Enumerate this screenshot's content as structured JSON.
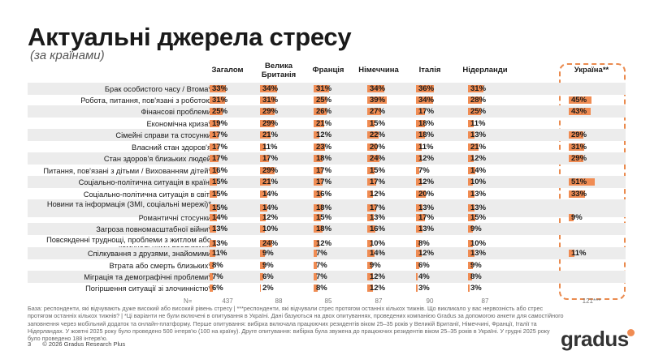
{
  "title": "Актуальні джерела стресу",
  "subtitle": "(за країнами)",
  "columns": [
    "Загалом",
    "Велика Британія",
    "Франція",
    "Німеччина",
    "Італія",
    "Нідерланди",
    "Україна**"
  ],
  "n_label": "N=",
  "n_values": [
    "437",
    "88",
    "85",
    "87",
    "90",
    "87",
    "121***"
  ],
  "colors": {
    "bar": "#f08c53",
    "frame": "#ea8a4e",
    "shade": "#ececec"
  },
  "chart_data": {
    "type": "table",
    "title": "Актуальні джерела стресу",
    "value_unit": "%",
    "columns": [
      "Загалом",
      "Велика Британія",
      "Франція",
      "Німеччина",
      "Італія",
      "Нідерланди",
      "Україна**"
    ],
    "rows": [
      {
        "label": "Брак особистого часу / Втома*",
        "values": [
          33,
          34,
          31,
          34,
          36,
          31,
          null
        ]
      },
      {
        "label": "Робота, питання, пов'язані з роботою",
        "values": [
          31,
          31,
          25,
          39,
          34,
          28,
          45
        ]
      },
      {
        "label": "Фінансові проблеми",
        "values": [
          25,
          29,
          26,
          27,
          17,
          25,
          43
        ]
      },
      {
        "label": "Економічна криза*",
        "values": [
          19,
          29,
          21,
          15,
          18,
          11,
          null
        ]
      },
      {
        "label": "Сімейні справи та стосунки",
        "values": [
          17,
          21,
          12,
          22,
          18,
          13,
          29
        ]
      },
      {
        "label": "Власний стан здоров'я",
        "values": [
          17,
          11,
          23,
          20,
          11,
          21,
          31
        ]
      },
      {
        "label": "Стан здоров'я близьких людей",
        "values": [
          17,
          17,
          18,
          24,
          12,
          12,
          29
        ]
      },
      {
        "label": "Питання, пов'язані з дітьми / Вихованням дітей*",
        "values": [
          16,
          29,
          17,
          15,
          7,
          14,
          null
        ]
      },
      {
        "label": "Соціально-політична ситуація в країні",
        "values": [
          15,
          21,
          17,
          17,
          12,
          10,
          51
        ]
      },
      {
        "label": "Соціально-політична ситуація в світі",
        "values": [
          15,
          14,
          16,
          12,
          20,
          13,
          33
        ]
      },
      {
        "label": "Новини та інформація (ЗМІ, соціальні мережі)*",
        "values": [
          15,
          14,
          18,
          17,
          13,
          13,
          null
        ]
      },
      {
        "label": "Романтичні стосунки",
        "values": [
          14,
          12,
          15,
          13,
          17,
          15,
          9
        ]
      },
      {
        "label": "Загроза повномасштабної війни*",
        "values": [
          13,
          10,
          18,
          16,
          13,
          9,
          null
        ]
      },
      {
        "label": "Повсякденні труднощі, проблеми з житлом або комунальними послугами*",
        "values": [
          13,
          24,
          12,
          10,
          8,
          10,
          null
        ]
      },
      {
        "label": "Спілкування з друзями, знайомими",
        "values": [
          11,
          9,
          7,
          14,
          12,
          13,
          11
        ]
      },
      {
        "label": "Втрата або смерть близьких*",
        "values": [
          8,
          9,
          7,
          9,
          6,
          9,
          null
        ]
      },
      {
        "label": "Міграція та демографічні проблеми*",
        "values": [
          7,
          6,
          7,
          12,
          4,
          8,
          null
        ]
      },
      {
        "label": "Погіршення ситуації зі злочинністю*",
        "values": [
          6,
          2,
          8,
          12,
          3,
          3,
          null
        ]
      }
    ]
  },
  "footnote": "База: респонденти, які відчувають дуже високий або високий рівень стресу | ***респонденти, які відчували стрес протягом останніх кількох тижнів. Що викликало у вас нервозність або стрес протягом останніх кількох тижнів? | *Ці варіанти не були включені в опитування в Україні. Дані базуються на двох опитуваннях, проведених компанією Gradus за допомогою анкети для самостійного заповнення через мобільний додаток та онлайн-платформу. Перше опитування: вибірка включала працюючих резидентів віком 25–35 років у Великій Британії, Німеччині, Франції, Італії та Нідерландах. У жовтні 2025 року було проведено 500 інтерв'ю (100 на країну). Друге опитування: вибірка була звужена до працюючих резидентів віком 25–35 років в Україні. У грудні 2025 року було проведено 188 інтерв'ю.",
  "footer": {
    "page": "3",
    "copyright": "© 2026 Gradus Research Plus"
  },
  "logo": {
    "text": "gradus"
  }
}
